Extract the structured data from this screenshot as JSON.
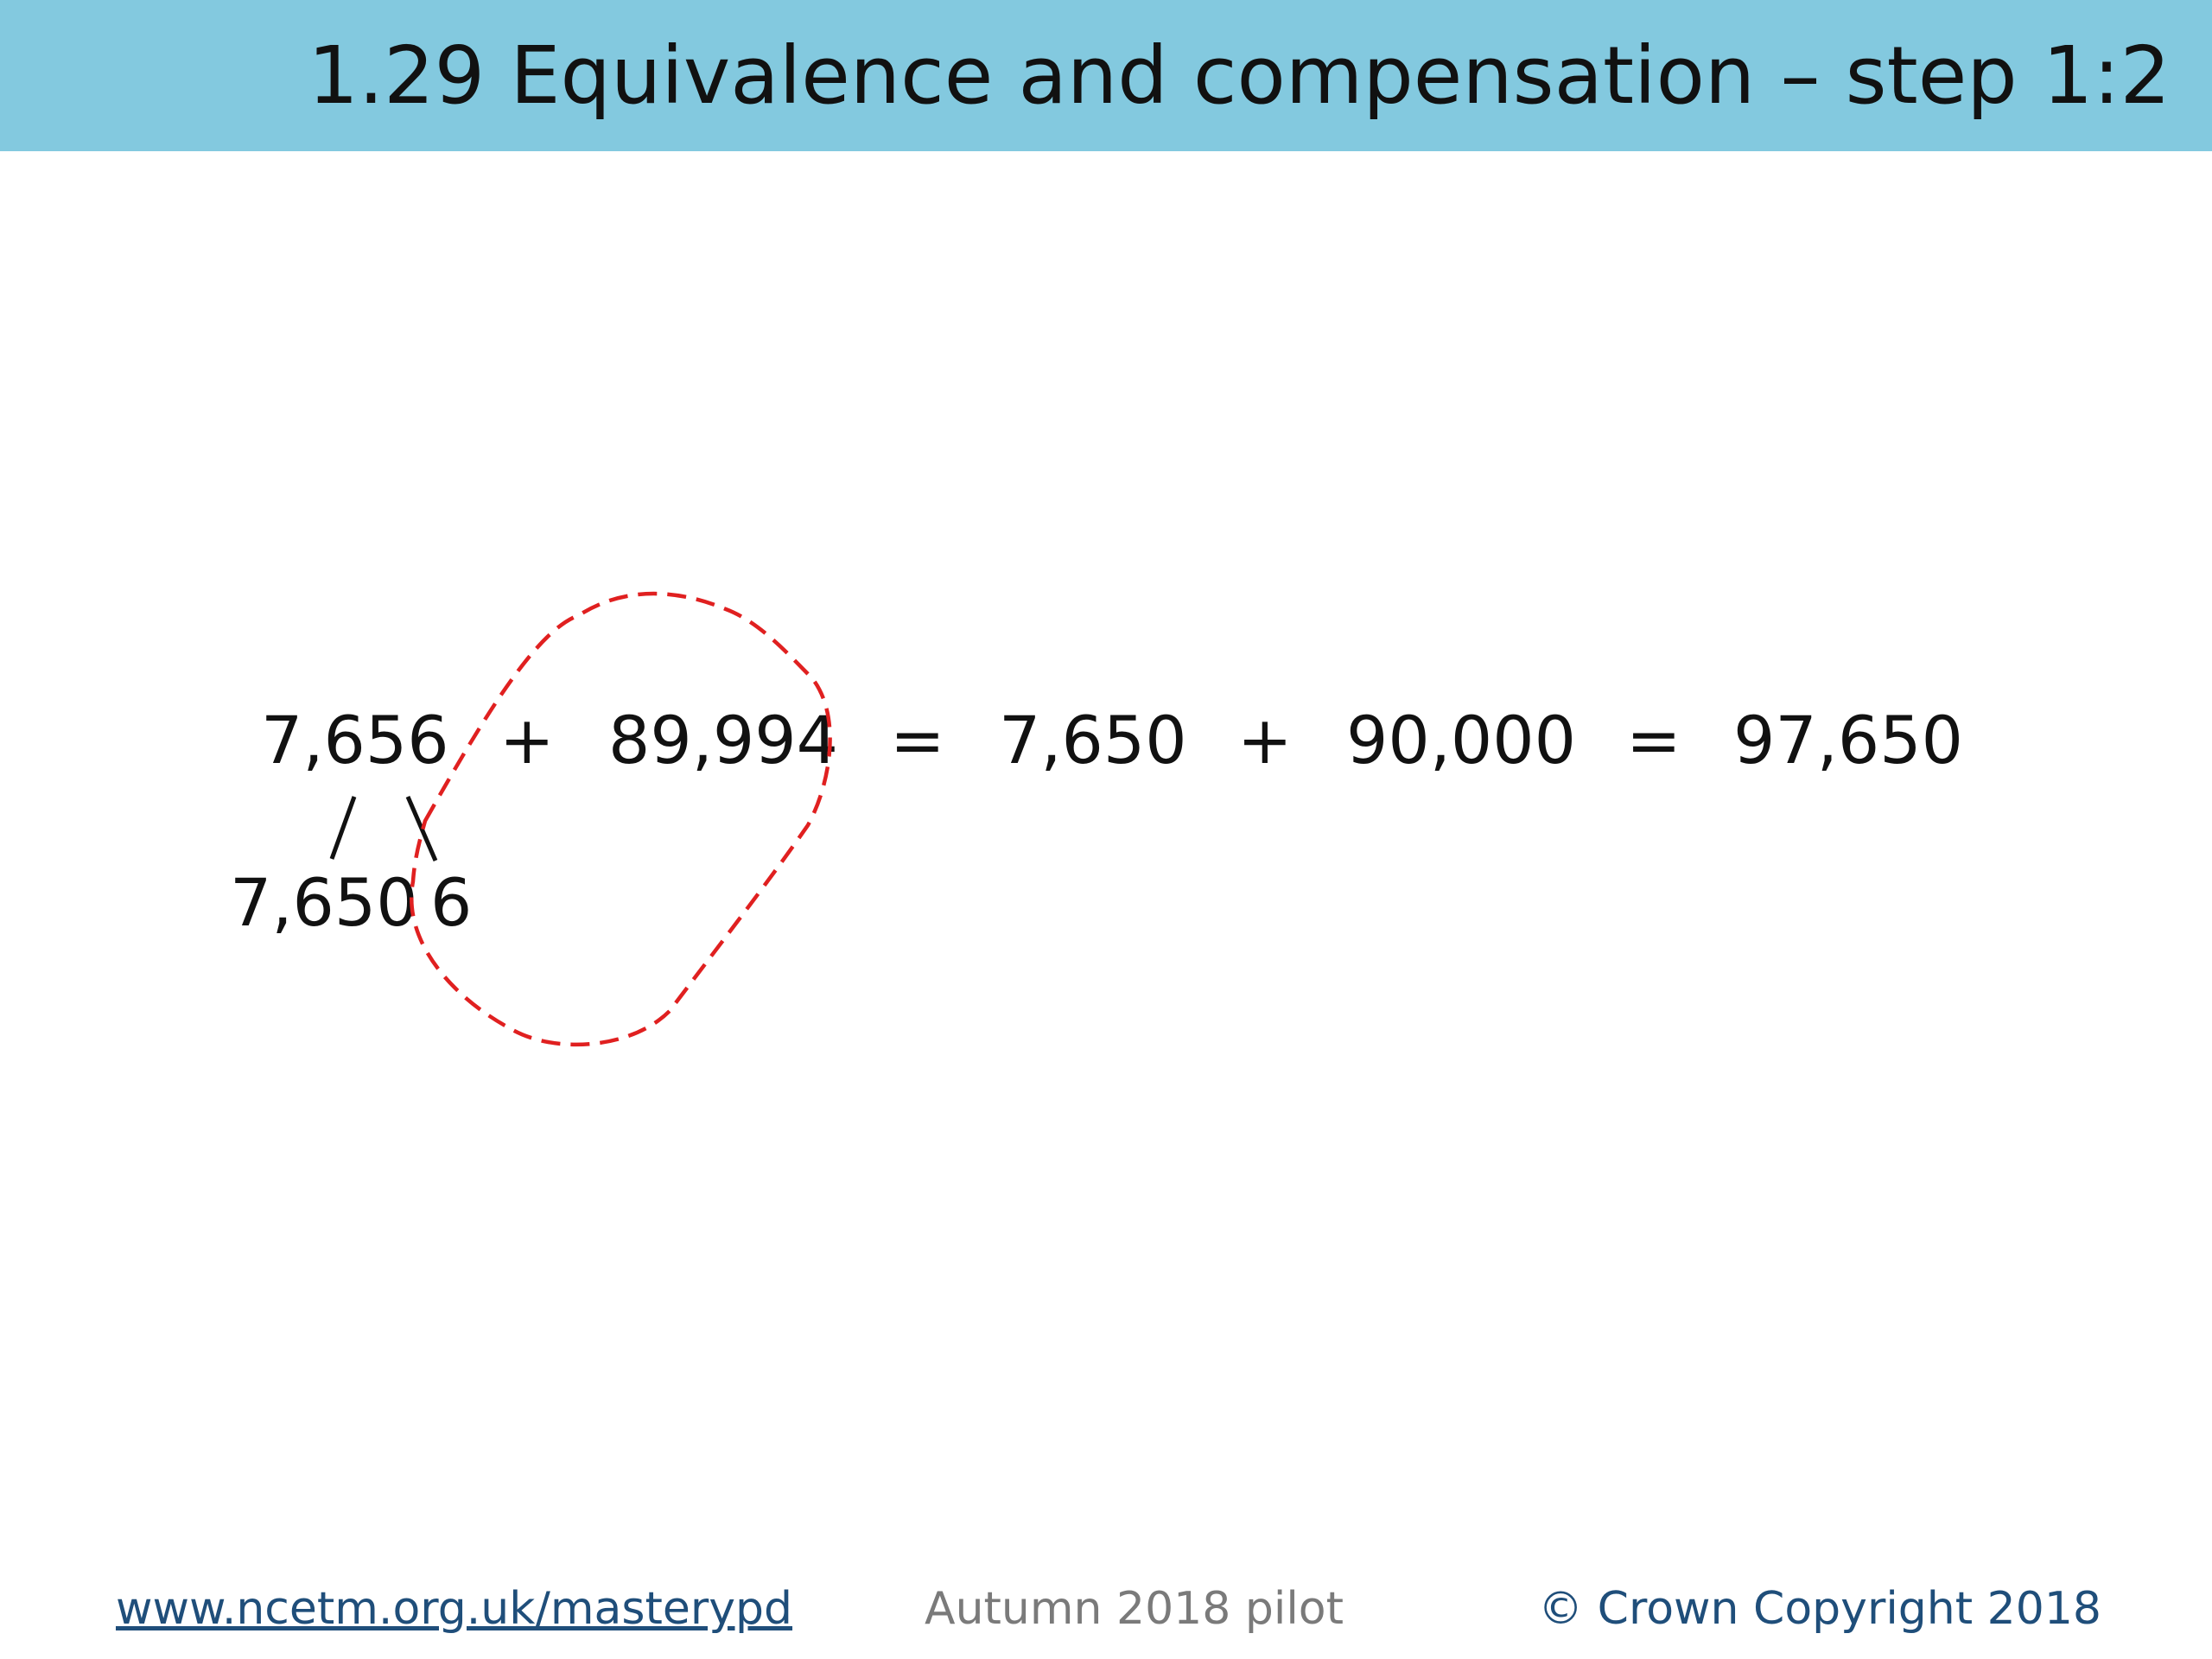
{
  "header": {
    "title": "1.29 Equivalence and compensation – step 1:2",
    "background_color": "#83c9df"
  },
  "equation": {
    "term_1": "7,656",
    "plus_1": "+",
    "term_2": "89,994",
    "equals_1": "=",
    "term_3": "7,650",
    "plus_2": "+",
    "term_4": "90,000",
    "equals_2": "=",
    "result": "97,650"
  },
  "partition": {
    "left_part": "7,650",
    "right_part": "6"
  },
  "annotation": {
    "loop_color": "#e02020"
  },
  "footer": {
    "link": "www.ncetm.org.uk/masterypd",
    "middle": "Autumn 2018 pilot",
    "copyright": "© Crown Copyright 2018"
  }
}
